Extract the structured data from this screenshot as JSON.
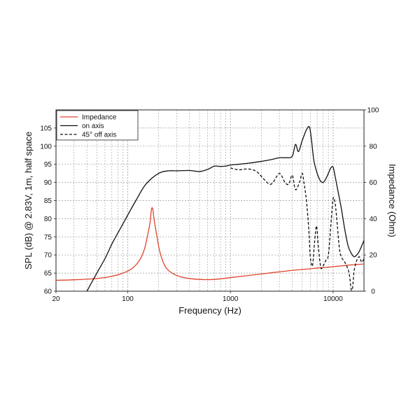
{
  "chart_data": {
    "type": "line",
    "xlabel": "Frequency (Hz)",
    "ylabel": "SPL (dB) @ 2.83V, 1m, half space",
    "y2label": "Impedance (Ohm)",
    "xscale": "log",
    "xlim": [
      20,
      20000
    ],
    "ylim": [
      60,
      110
    ],
    "y2lim": [
      0,
      100
    ],
    "x_ticks": [
      {
        "value": 20,
        "label": "20"
      },
      {
        "value": 100,
        "label": "100"
      },
      {
        "value": 1000,
        "label": "1000"
      },
      {
        "value": 10000,
        "label": "10000"
      }
    ],
    "y_ticks": [
      60,
      65,
      70,
      75,
      80,
      85,
      90,
      95,
      100,
      105
    ],
    "y2_ticks": [
      0,
      20,
      40,
      60,
      80,
      100
    ],
    "grid": true,
    "legend": {
      "position": "top-left"
    },
    "colors": {
      "impedance": "#e0442c",
      "on_axis": "#111111",
      "off_axis": "#111111",
      "grid": "#9a9a9a"
    },
    "series": [
      {
        "name": "Impedance",
        "axis": "right",
        "style": "solid",
        "x": [
          20,
          30,
          50,
          70,
          90,
          110,
          130,
          145,
          155,
          165,
          170,
          175,
          180,
          190,
          205,
          230,
          270,
          350,
          500,
          700,
          1000,
          2000,
          4000,
          8000,
          15000,
          20000
        ],
        "y": [
          6,
          6.3,
          7,
          8.2,
          10,
          12.5,
          17,
          23,
          30,
          38,
          45,
          45.5,
          40,
          32,
          22,
          14,
          10,
          7.5,
          6.5,
          6.5,
          7.5,
          9.5,
          11.5,
          13,
          14.5,
          15
        ]
      },
      {
        "name": "on axis",
        "axis": "left",
        "style": "solid",
        "x": [
          40,
          50,
          60,
          70,
          80,
          100,
          120,
          150,
          200,
          250,
          300,
          400,
          500,
          600,
          700,
          800,
          900,
          1000,
          1200,
          1500,
          2000,
          2500,
          3000,
          3500,
          4000,
          4300,
          4600,
          5000,
          5500,
          5900,
          6200,
          6500,
          7000,
          7500,
          8000,
          8500,
          9000,
          9500,
          10000,
          10500,
          11000,
          12000,
          13000,
          14000,
          15000,
          16000,
          17000,
          18000,
          19000,
          20000
        ],
        "y": [
          60,
          65,
          69,
          73,
          76,
          81,
          85,
          89.5,
          92.5,
          93.2,
          93.2,
          93.3,
          93,
          93.6,
          94.5,
          94.4,
          94.5,
          94.8,
          95,
          95.3,
          95.8,
          96.3,
          96.8,
          96.8,
          97.2,
          100.5,
          98.5,
          101.5,
          104.5,
          105.2,
          101,
          96,
          92.5,
          90.5,
          90,
          91,
          92.5,
          94,
          94.2,
          91.5,
          88.5,
          83,
          77,
          72.5,
          70.5,
          69.5,
          70,
          71,
          72.5,
          74
        ]
      },
      {
        "name": "45° off axis",
        "axis": "left",
        "style": "dashed",
        "x": [
          1000,
          1200,
          1500,
          1800,
          2100,
          2400,
          2600,
          2800,
          3000,
          3200,
          3400,
          3700,
          4000,
          4300,
          4700,
          5000,
          5200,
          5500,
          5800,
          6000,
          6300,
          6600,
          6900,
          7200,
          7600,
          8000,
          8500,
          9000,
          9500,
          10000,
          10500,
          11000,
          11500,
          12000,
          13000,
          14000,
          14500,
          15000,
          15500,
          16000,
          17000,
          18000,
          19000,
          20000
        ],
        "y": [
          94,
          93.5,
          93.7,
          93,
          91,
          89.5,
          90,
          91.5,
          92.5,
          91.5,
          90,
          89.5,
          92,
          88,
          90,
          92.5,
          90,
          85,
          77,
          69.5,
          67,
          73.5,
          78,
          72,
          66.5,
          67,
          68.5,
          70,
          78,
          85.5,
          84,
          78,
          72,
          69.5,
          68,
          66,
          64,
          60.5,
          61,
          65.5,
          68.5,
          69.5,
          68,
          69
        ]
      }
    ]
  }
}
